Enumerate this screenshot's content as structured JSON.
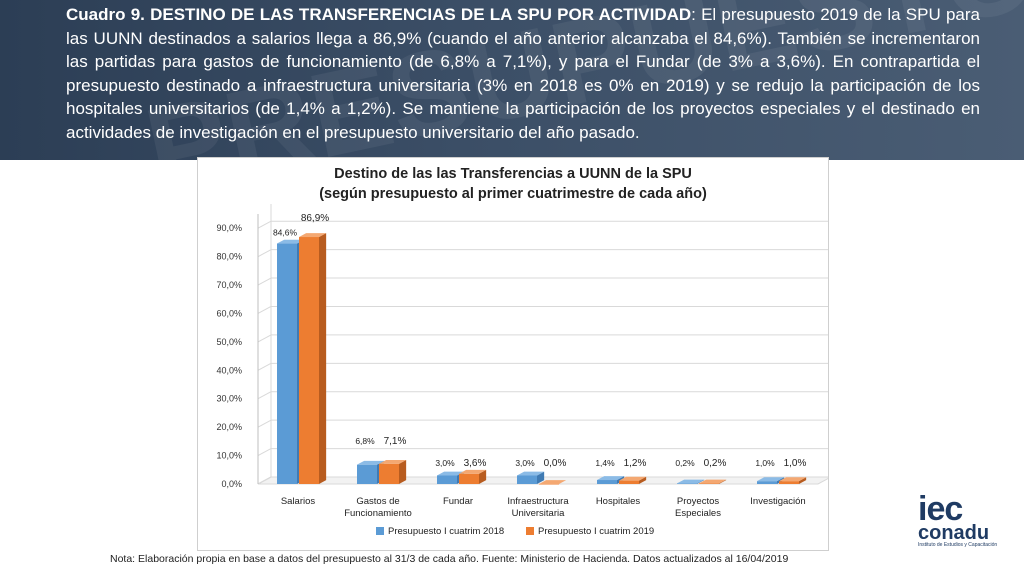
{
  "header": {
    "title": "Cuadro 9.   DESTINO DE LAS TRANSFERENCIAS DE LA SPU POR ACTIVIDAD",
    "body": ": El presupuesto 2019 de la SPU para las UUNN destinados a salarios llega a 86,9% (cuando el año anterior alcanzaba el 84,6%). También se incrementaron las partidas para gastos de funcionamiento (de 6,8% a 7,1%), y para el Fundar (de 3% a 3,6%). En contrapartida el presupuesto destinado a infraestructura universitaria (3% en 2018 es 0% en 2019) y se redujo la participación de los hospitales universitarios (de 1,4% a 1,2%). Se mantiene la participación de los proyectos especiales y el destinado en actividades de investigación en el presupuesto universitario del año pasado."
  },
  "chart_data": {
    "type": "bar",
    "title_line1": "Destino de las las Transferencias a UUNN de la SPU",
    "title_line2": "(según presupuesto al primer cuatrimestre de cada año)",
    "categories": [
      [
        "Salarios"
      ],
      [
        "Gastos de",
        "Funcionamiento"
      ],
      [
        "Fundar"
      ],
      [
        "Infraestructura",
        "Universitaria"
      ],
      [
        "Hospitales"
      ],
      [
        "Proyectos",
        "Especiales"
      ],
      [
        "Investigación"
      ]
    ],
    "series": [
      {
        "name": "Presupuesto I cuatrim 2018",
        "color": "#5b9bd5",
        "side": "#3f7ab3",
        "top": "#8bbbe6",
        "values": [
          84.6,
          6.8,
          3.0,
          3.0,
          1.4,
          0.2,
          1.0
        ],
        "labels": [
          "84,6%",
          "6,8%",
          "3,0%",
          "3,0%",
          "1,4%",
          "0,2%",
          "1,0%"
        ]
      },
      {
        "name": "Presupuesto I cuatrim 2019",
        "color": "#ed7d31",
        "side": "#b85c1f",
        "top": "#f4a872",
        "values": [
          86.9,
          7.1,
          3.6,
          0.0,
          1.2,
          0.2,
          1.0
        ],
        "labels": [
          "86,9%",
          "7,1%",
          "3,6%",
          "0,0%",
          "1,2%",
          "0,2%",
          "1,0%"
        ]
      }
    ],
    "yticks": [
      "0,0%",
      "10,0%",
      "20,0%",
      "30,0%",
      "40,0%",
      "50,0%",
      "60,0%",
      "70,0%",
      "80,0%",
      "90,0%"
    ],
    "ylim": [
      0,
      95
    ],
    "legend_position": "bottom"
  },
  "note": "Nota: Elaboración propia en base a datos del presupuesto al 31/3 de cada año. Fuente: Ministerio de Hacienda. Datos actualizados al 16/04/2019",
  "logo": {
    "line1": "iec",
    "line2": "conadu",
    "line3": "Instituto de Estudios y Capacitación"
  }
}
